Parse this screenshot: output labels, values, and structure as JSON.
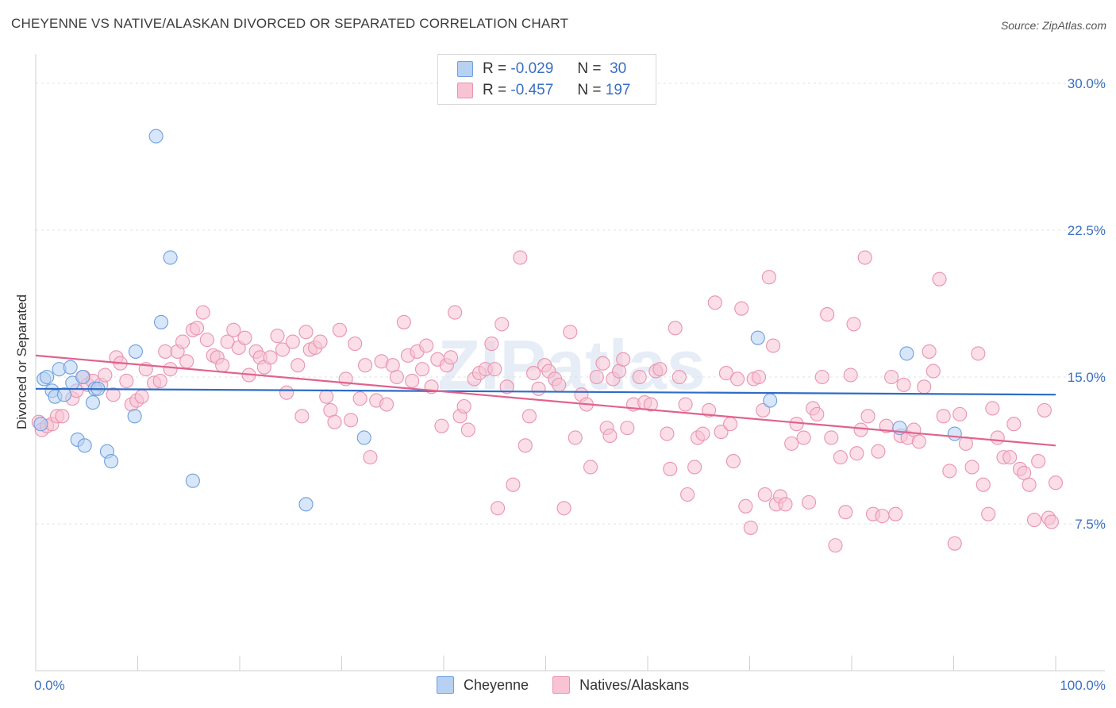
{
  "title": "CHEYENNE VS NATIVE/ALASKAN DIVORCED OR SEPARATED CORRELATION CHART",
  "source": "Source: ZipAtlas.com",
  "watermark": "ZIPatlas",
  "legend": {
    "r_label": "R =",
    "n_label": "N =",
    "series": [
      {
        "r": "-0.029",
        "n": "30"
      },
      {
        "r": "-0.457",
        "n": "197"
      }
    ]
  },
  "colors": {
    "cheyenne_fill": "#b7d1f2",
    "cheyenne_stroke": "#6f9fe0",
    "cheyenne_line": "#2f6cc7",
    "native_fill": "#f8c3d3",
    "native_stroke": "#e894b0",
    "native_line": "#e0628f",
    "axis_label": "#3a6fc4"
  },
  "chart_data": {
    "type": "scatter",
    "xlabel": "",
    "ylabel": "Divorced or Separated",
    "x_tick_labels": [
      "0.0%",
      "100.0%"
    ],
    "y_tick_labels": [
      "7.5%",
      "15.0%",
      "22.5%",
      "30.0%"
    ],
    "y_ticks": [
      7.5,
      15.0,
      22.5,
      30.0
    ],
    "xlim": [
      0,
      100
    ],
    "ylim": [
      0,
      31.5
    ],
    "grid": true,
    "legend_position": "top-center",
    "series": [
      {
        "name": "Cheyenne",
        "trend": [
          [
            0,
            14.4
          ],
          [
            100,
            14.1
          ]
        ],
        "points": [
          [
            0.5,
            12.6
          ],
          [
            0.8,
            14.9
          ],
          [
            1.1,
            15.0
          ],
          [
            1.6,
            14.3
          ],
          [
            1.9,
            14.0
          ],
          [
            2.3,
            15.4
          ],
          [
            2.8,
            14.1
          ],
          [
            3.4,
            15.5
          ],
          [
            3.6,
            14.7
          ],
          [
            4.1,
            11.8
          ],
          [
            4.6,
            15.0
          ],
          [
            4.8,
            11.5
          ],
          [
            5.6,
            13.7
          ],
          [
            5.8,
            14.4
          ],
          [
            6.1,
            14.4
          ],
          [
            7.0,
            11.2
          ],
          [
            7.4,
            10.7
          ],
          [
            9.7,
            13.0
          ],
          [
            9.8,
            16.3
          ],
          [
            11.8,
            27.3
          ],
          [
            12.3,
            17.8
          ],
          [
            13.2,
            21.1
          ],
          [
            15.4,
            9.7
          ],
          [
            26.5,
            8.5
          ],
          [
            32.2,
            11.9
          ],
          [
            70.8,
            17.0
          ],
          [
            72.0,
            13.8
          ],
          [
            84.7,
            12.4
          ],
          [
            85.4,
            16.2
          ],
          [
            90.1,
            12.1
          ]
        ]
      },
      {
        "name": "Natives/Alaskans",
        "trend": [
          [
            0,
            16.1
          ],
          [
            100,
            11.5
          ]
        ],
        "points": [
          [
            0.3,
            12.7
          ],
          [
            0.6,
            12.3
          ],
          [
            1.1,
            12.5
          ],
          [
            1.6,
            12.6
          ],
          [
            2.1,
            13.0
          ],
          [
            2.6,
            13.0
          ],
          [
            3.6,
            13.9
          ],
          [
            4.0,
            14.3
          ],
          [
            4.7,
            15.0
          ],
          [
            5.1,
            14.6
          ],
          [
            5.6,
            14.8
          ],
          [
            6.4,
            14.6
          ],
          [
            6.8,
            15.1
          ],
          [
            7.6,
            14.1
          ],
          [
            7.9,
            16.0
          ],
          [
            8.3,
            15.7
          ],
          [
            8.9,
            14.8
          ],
          [
            9.4,
            13.6
          ],
          [
            9.9,
            13.8
          ],
          [
            10.4,
            14.0
          ],
          [
            10.8,
            15.4
          ],
          [
            11.6,
            14.7
          ],
          [
            12.2,
            14.8
          ],
          [
            12.7,
            16.3
          ],
          [
            13.2,
            15.4
          ],
          [
            13.9,
            16.3
          ],
          [
            14.4,
            16.8
          ],
          [
            14.8,
            15.8
          ],
          [
            15.4,
            17.4
          ],
          [
            15.8,
            17.5
          ],
          [
            16.4,
            18.3
          ],
          [
            16.8,
            16.9
          ],
          [
            17.4,
            16.1
          ],
          [
            17.8,
            16.0
          ],
          [
            18.3,
            15.6
          ],
          [
            18.8,
            16.8
          ],
          [
            19.4,
            17.4
          ],
          [
            19.9,
            16.5
          ],
          [
            20.5,
            17.0
          ],
          [
            20.9,
            15.1
          ],
          [
            21.6,
            16.3
          ],
          [
            22.0,
            16.0
          ],
          [
            22.4,
            15.5
          ],
          [
            23.0,
            16.0
          ],
          [
            23.7,
            17.1
          ],
          [
            24.2,
            16.4
          ],
          [
            24.6,
            14.2
          ],
          [
            25.2,
            16.8
          ],
          [
            25.7,
            15.6
          ],
          [
            26.1,
            13.0
          ],
          [
            26.5,
            17.3
          ],
          [
            26.9,
            16.4
          ],
          [
            27.4,
            16.5
          ],
          [
            27.9,
            16.8
          ],
          [
            28.5,
            14.0
          ],
          [
            28.9,
            13.3
          ],
          [
            29.3,
            12.7
          ],
          [
            29.8,
            17.4
          ],
          [
            30.4,
            14.9
          ],
          [
            30.9,
            12.8
          ],
          [
            31.3,
            16.7
          ],
          [
            31.8,
            13.9
          ],
          [
            32.3,
            15.6
          ],
          [
            32.8,
            10.9
          ],
          [
            33.4,
            13.8
          ],
          [
            33.9,
            15.8
          ],
          [
            34.4,
            13.6
          ],
          [
            35.0,
            15.6
          ],
          [
            35.4,
            15.0
          ],
          [
            36.1,
            17.8
          ],
          [
            36.5,
            16.1
          ],
          [
            36.9,
            14.8
          ],
          [
            37.4,
            16.3
          ],
          [
            37.9,
            15.4
          ],
          [
            38.3,
            16.6
          ],
          [
            38.8,
            14.5
          ],
          [
            39.4,
            15.9
          ],
          [
            39.8,
            12.5
          ],
          [
            40.3,
            15.6
          ],
          [
            40.7,
            16.0
          ],
          [
            41.1,
            18.3
          ],
          [
            41.6,
            13.0
          ],
          [
            42.0,
            13.5
          ],
          [
            42.4,
            12.3
          ],
          [
            43.0,
            14.9
          ],
          [
            43.5,
            15.2
          ],
          [
            44.1,
            15.4
          ],
          [
            44.7,
            16.7
          ],
          [
            45.0,
            15.4
          ],
          [
            45.3,
            8.3
          ],
          [
            45.7,
            17.7
          ],
          [
            46.2,
            14.5
          ],
          [
            46.8,
            9.5
          ],
          [
            47.5,
            21.1
          ],
          [
            48.0,
            11.5
          ],
          [
            48.4,
            13.0
          ],
          [
            48.8,
            15.2
          ],
          [
            49.3,
            14.4
          ],
          [
            49.9,
            15.6
          ],
          [
            50.3,
            15.3
          ],
          [
            50.9,
            14.9
          ],
          [
            51.3,
            14.6
          ],
          [
            51.8,
            8.3
          ],
          [
            52.4,
            17.3
          ],
          [
            52.9,
            11.9
          ],
          [
            53.5,
            14.1
          ],
          [
            54.0,
            13.6
          ],
          [
            54.4,
            10.4
          ],
          [
            55.0,
            15.0
          ],
          [
            55.6,
            15.7
          ],
          [
            56.0,
            12.4
          ],
          [
            56.3,
            12.0
          ],
          [
            56.6,
            14.9
          ],
          [
            57.2,
            15.3
          ],
          [
            57.6,
            15.9
          ],
          [
            58.0,
            12.4
          ],
          [
            58.6,
            13.6
          ],
          [
            59.2,
            15.0
          ],
          [
            59.7,
            13.7
          ],
          [
            60.3,
            13.6
          ],
          [
            60.8,
            15.3
          ],
          [
            61.2,
            15.4
          ],
          [
            61.9,
            12.1
          ],
          [
            62.2,
            10.3
          ],
          [
            62.7,
            17.5
          ],
          [
            63.1,
            15.0
          ],
          [
            63.7,
            13.6
          ],
          [
            63.9,
            9.0
          ],
          [
            64.6,
            10.4
          ],
          [
            64.9,
            11.9
          ],
          [
            65.4,
            12.1
          ],
          [
            66.0,
            13.3
          ],
          [
            66.6,
            18.8
          ],
          [
            67.2,
            12.2
          ],
          [
            67.7,
            15.2
          ],
          [
            68.1,
            12.6
          ],
          [
            68.4,
            10.7
          ],
          [
            68.8,
            14.9
          ],
          [
            69.2,
            18.5
          ],
          [
            69.6,
            8.4
          ],
          [
            70.1,
            7.3
          ],
          [
            70.4,
            14.9
          ],
          [
            70.9,
            15.0
          ],
          [
            71.3,
            13.3
          ],
          [
            71.5,
            9.0
          ],
          [
            71.9,
            20.1
          ],
          [
            72.3,
            16.6
          ],
          [
            72.6,
            8.5
          ],
          [
            73.0,
            8.9
          ],
          [
            73.5,
            8.5
          ],
          [
            74.1,
            11.6
          ],
          [
            74.6,
            12.6
          ],
          [
            75.3,
            11.9
          ],
          [
            75.8,
            8.6
          ],
          [
            76.2,
            13.4
          ],
          [
            76.6,
            13.1
          ],
          [
            77.1,
            15.0
          ],
          [
            77.6,
            18.2
          ],
          [
            78.0,
            11.9
          ],
          [
            78.4,
            6.4
          ],
          [
            78.9,
            10.9
          ],
          [
            79.4,
            8.1
          ],
          [
            79.9,
            15.1
          ],
          [
            80.2,
            17.7
          ],
          [
            80.5,
            11.1
          ],
          [
            80.9,
            12.3
          ],
          [
            81.3,
            21.1
          ],
          [
            81.6,
            13.0
          ],
          [
            82.1,
            8.0
          ],
          [
            82.6,
            11.2
          ],
          [
            83.0,
            7.9
          ],
          [
            83.4,
            12.5
          ],
          [
            83.9,
            15.0
          ],
          [
            84.3,
            8.0
          ],
          [
            84.8,
            12.0
          ],
          [
            85.1,
            14.6
          ],
          [
            85.5,
            11.9
          ],
          [
            86.1,
            12.3
          ],
          [
            86.6,
            11.7
          ],
          [
            87.1,
            14.5
          ],
          [
            87.6,
            16.3
          ],
          [
            88.0,
            15.3
          ],
          [
            88.6,
            20.0
          ],
          [
            89.0,
            13.0
          ],
          [
            89.6,
            10.2
          ],
          [
            90.1,
            6.5
          ],
          [
            90.6,
            13.1
          ],
          [
            91.2,
            11.6
          ],
          [
            91.8,
            10.4
          ],
          [
            92.4,
            16.2
          ],
          [
            92.9,
            9.5
          ],
          [
            93.4,
            8.0
          ],
          [
            93.8,
            13.4
          ],
          [
            94.3,
            11.9
          ],
          [
            94.9,
            10.9
          ],
          [
            95.5,
            10.9
          ],
          [
            95.9,
            12.6
          ],
          [
            96.5,
            10.3
          ],
          [
            96.9,
            10.1
          ],
          [
            97.4,
            9.5
          ],
          [
            97.9,
            7.7
          ],
          [
            98.3,
            10.7
          ],
          [
            98.9,
            13.3
          ],
          [
            99.3,
            7.8
          ],
          [
            99.6,
            7.6
          ],
          [
            100.0,
            9.6
          ]
        ]
      }
    ]
  }
}
